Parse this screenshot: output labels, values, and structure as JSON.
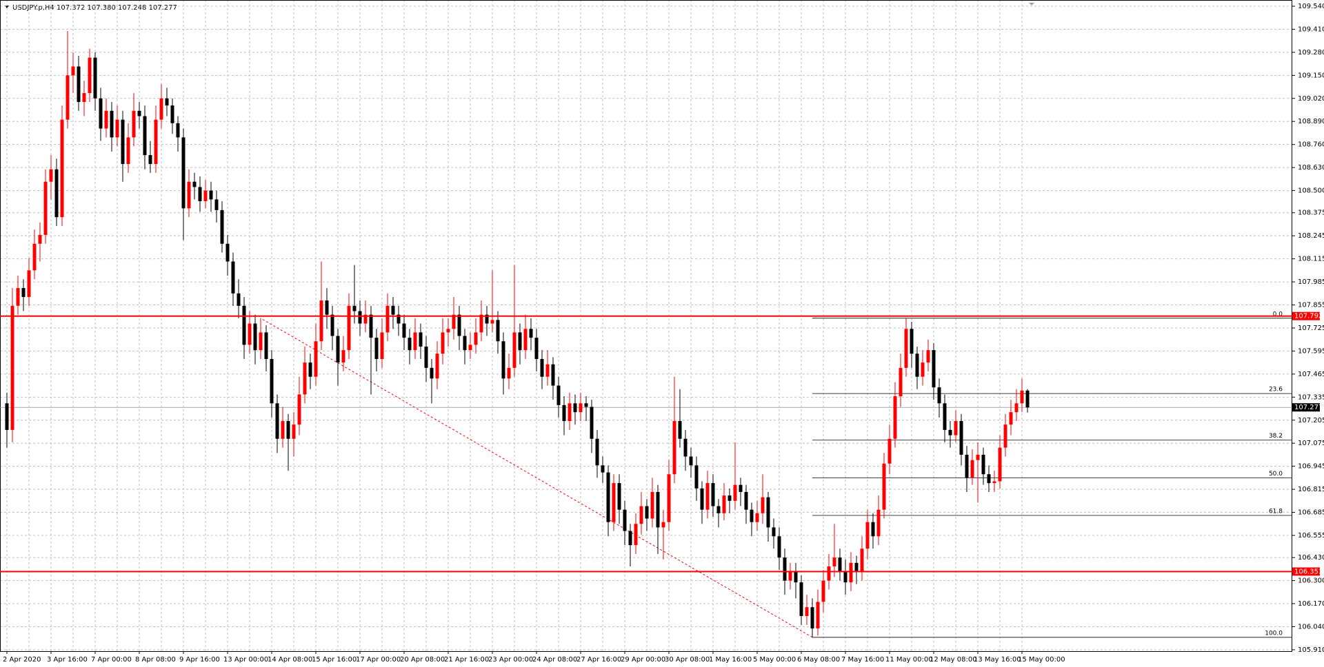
{
  "chart_data": {
    "type": "candlestick",
    "title": "USDJPY.p,H4  107.372 107.380 107.248 107.277",
    "up_color": "#ff0000",
    "down_color": "#000000",
    "grid": true,
    "ylim": [
      105.902,
      109.575
    ],
    "yticks": [
      {
        "value": 109.54,
        "label": "109.540"
      },
      {
        "value": 109.41,
        "label": "109.410"
      },
      {
        "value": 109.28,
        "label": "109.280"
      },
      {
        "value": 109.15,
        "label": "109.150"
      },
      {
        "value": 109.02,
        "label": "109.020"
      },
      {
        "value": 108.89,
        "label": "108.890"
      },
      {
        "value": 108.76,
        "label": "108.760"
      },
      {
        "value": 108.63,
        "label": "108.630"
      },
      {
        "value": 108.5,
        "label": "108.500"
      },
      108.375,
      108.245,
      108.115,
      107.985,
      107.855,
      107.725,
      107.595,
      107.465,
      107.335,
      107.205,
      107.075,
      106.945,
      106.815,
      106.685,
      106.555,
      {
        "value": 106.43,
        "label": "106.430"
      },
      {
        "value": 106.3,
        "label": "106.300"
      },
      {
        "value": 106.17,
        "label": "106.170"
      },
      {
        "value": 106.04,
        "label": "106.040"
      },
      {
        "value": 105.91,
        "label": "105.910"
      }
    ],
    "categories": [
      "2 Apr 2020",
      null,
      null,
      null,
      null,
      null,
      null,
      null,
      "3 Apr 16:00",
      null,
      null,
      null,
      null,
      null,
      null,
      null,
      "7 Apr 00:00",
      null,
      null,
      null,
      null,
      null,
      null,
      null,
      "8 Apr 08:00",
      null,
      null,
      null,
      null,
      null,
      null,
      null,
      "9 Apr 16:00",
      null,
      null,
      null,
      null,
      null,
      null,
      null,
      "13 Apr 00:00",
      null,
      null,
      null,
      null,
      null,
      null,
      null,
      "14 Apr 08:00",
      null,
      null,
      null,
      null,
      null,
      null,
      null,
      "15 Apr 16:00",
      null,
      null,
      null,
      null,
      null,
      null,
      null,
      "17 Apr 00:00",
      null,
      null,
      null,
      null,
      null,
      null,
      null,
      "20 Apr 08:00",
      null,
      null,
      null,
      null,
      null,
      null,
      null,
      "21 Apr 16:00",
      null,
      null,
      null,
      null,
      null,
      null,
      null,
      "23 Apr 00:00",
      null,
      null,
      null,
      null,
      null,
      null,
      null,
      "24 Apr 08:00",
      null,
      null,
      null,
      null,
      null,
      null,
      null,
      "27 Apr 16:00",
      null,
      null,
      null,
      null,
      null,
      null,
      null,
      "29 Apr 00:00",
      null,
      null,
      null,
      null,
      null,
      null,
      null,
      "30 Apr 08:00",
      null,
      null,
      null,
      null,
      null,
      null,
      null,
      "1 May 16:00",
      null,
      null,
      null,
      null,
      null,
      null,
      null,
      "5 May 00:00",
      null,
      null,
      null,
      null,
      null,
      null,
      null,
      "6 May 08:00",
      null,
      null,
      null,
      null,
      null,
      null,
      null,
      "7 May 16:00",
      null,
      null,
      null,
      null,
      null,
      null,
      null,
      "11 May 00:00",
      null,
      null,
      null,
      null,
      null,
      null,
      null,
      "12 May 08:00",
      null,
      null,
      null,
      null,
      null,
      null,
      null,
      "13 May 16:00",
      null,
      null,
      null,
      null,
      null,
      null,
      null,
      "15 May 00:00",
      null
    ],
    "ohlc": [
      [
        107.3,
        107.36,
        107.05,
        107.15
      ],
      [
        107.15,
        107.95,
        107.08,
        107.85
      ],
      [
        107.85,
        108.02,
        107.8,
        107.95
      ],
      [
        107.95,
        108.0,
        107.82,
        107.9
      ],
      [
        107.9,
        108.12,
        107.85,
        108.05
      ],
      [
        108.05,
        108.28,
        108.0,
        108.2
      ],
      [
        108.2,
        108.32,
        108.1,
        108.25
      ],
      [
        108.25,
        108.62,
        108.2,
        108.55
      ],
      [
        108.55,
        108.7,
        108.45,
        108.62
      ],
      [
        108.62,
        108.68,
        108.3,
        108.35
      ],
      [
        108.35,
        108.98,
        108.3,
        108.9
      ],
      [
        108.9,
        109.4,
        108.85,
        109.15
      ],
      [
        109.15,
        109.28,
        109.05,
        109.2
      ],
      [
        109.2,
        109.26,
        108.95,
        109.0
      ],
      [
        109.0,
        109.12,
        108.92,
        109.05
      ],
      [
        109.05,
        109.3,
        109.0,
        109.25
      ],
      [
        109.25,
        109.28,
        108.95,
        109.02
      ],
      [
        109.02,
        109.08,
        108.78,
        108.85
      ],
      [
        108.85,
        109.02,
        108.8,
        108.95
      ],
      [
        108.95,
        109.0,
        108.72,
        108.8
      ],
      [
        108.8,
        108.98,
        108.75,
        108.9
      ],
      [
        108.9,
        108.95,
        108.55,
        108.65
      ],
      [
        108.65,
        108.88,
        108.6,
        108.8
      ],
      [
        108.8,
        109.05,
        108.75,
        108.95
      ],
      [
        108.95,
        109.0,
        108.85,
        108.92
      ],
      [
        108.92,
        108.98,
        108.62,
        108.7
      ],
      [
        108.7,
        108.78,
        108.6,
        108.65
      ],
      [
        108.65,
        108.98,
        108.6,
        108.9
      ],
      [
        108.9,
        109.1,
        108.85,
        109.02
      ],
      [
        109.02,
        109.08,
        108.92,
        108.98
      ],
      [
        108.98,
        109.02,
        108.82,
        108.88
      ],
      [
        108.88,
        108.92,
        108.72,
        108.8
      ],
      [
        108.8,
        108.85,
        108.22,
        108.4
      ],
      [
        108.4,
        108.62,
        108.35,
        108.55
      ],
      [
        108.55,
        108.6,
        108.45,
        108.52
      ],
      [
        108.52,
        108.58,
        108.38,
        108.44
      ],
      [
        108.44,
        108.56,
        108.4,
        108.5
      ],
      [
        108.5,
        108.55,
        108.38,
        108.45
      ],
      [
        108.45,
        108.5,
        108.32,
        108.39
      ],
      [
        108.39,
        108.44,
        108.15,
        108.2
      ],
      [
        108.2,
        108.25,
        108.02,
        108.1
      ],
      [
        108.1,
        108.15,
        107.85,
        107.92
      ],
      [
        107.92,
        108.0,
        107.78,
        107.85
      ],
      [
        107.85,
        107.9,
        107.55,
        107.63
      ],
      [
        107.63,
        107.82,
        107.58,
        107.75
      ],
      [
        107.75,
        107.8,
        107.52,
        107.6
      ],
      [
        107.6,
        107.78,
        107.55,
        107.7
      ],
      [
        107.7,
        107.74,
        107.48,
        107.55
      ],
      [
        107.55,
        107.6,
        107.22,
        107.3
      ],
      [
        107.3,
        107.35,
        107.02,
        107.1
      ],
      [
        107.1,
        107.28,
        107.05,
        107.2
      ],
      [
        107.2,
        107.24,
        106.92,
        107.1
      ],
      [
        107.1,
        107.25,
        107.0,
        107.18
      ],
      [
        107.18,
        107.45,
        107.12,
        107.35
      ],
      [
        107.35,
        107.62,
        107.3,
        107.53
      ],
      [
        107.53,
        107.58,
        107.38,
        107.45
      ],
      [
        107.45,
        107.75,
        107.4,
        107.65
      ],
      [
        107.65,
        108.1,
        107.6,
        107.88
      ],
      [
        107.88,
        107.95,
        107.72,
        107.8
      ],
      [
        107.8,
        107.85,
        107.6,
        107.68
      ],
      [
        107.68,
        107.72,
        107.4,
        107.53
      ],
      [
        107.53,
        107.68,
        107.48,
        107.6
      ],
      [
        107.6,
        107.92,
        107.55,
        107.85
      ],
      [
        107.85,
        108.08,
        107.75,
        107.82
      ],
      [
        107.82,
        107.88,
        107.68,
        107.75
      ],
      [
        107.75,
        107.88,
        107.7,
        107.8
      ],
      [
        107.8,
        107.85,
        107.35,
        107.67
      ],
      [
        107.67,
        107.72,
        107.48,
        107.55
      ],
      [
        107.55,
        107.78,
        107.5,
        107.7
      ],
      [
        107.7,
        107.92,
        107.65,
        107.85
      ],
      [
        107.85,
        107.9,
        107.72,
        107.8
      ],
      [
        107.8,
        107.85,
        107.68,
        107.75
      ],
      [
        107.75,
        107.8,
        107.6,
        107.67
      ],
      [
        107.67,
        107.72,
        107.52,
        107.6
      ],
      [
        107.6,
        107.78,
        107.55,
        107.7
      ],
      [
        107.7,
        107.75,
        107.55,
        107.62
      ],
      [
        107.62,
        107.68,
        107.42,
        107.5
      ],
      [
        107.5,
        107.55,
        107.3,
        107.44
      ],
      [
        107.44,
        107.65,
        107.38,
        107.58
      ],
      [
        107.58,
        107.78,
        107.52,
        107.7
      ],
      [
        107.7,
        107.78,
        107.62,
        107.72
      ],
      [
        107.72,
        107.9,
        107.66,
        107.8
      ],
      [
        107.8,
        107.85,
        107.6,
        107.68
      ],
      [
        107.68,
        107.72,
        107.52,
        107.6
      ],
      [
        107.6,
        107.7,
        107.55,
        107.63
      ],
      [
        107.63,
        107.78,
        107.58,
        107.7
      ],
      [
        107.7,
        107.88,
        107.65,
        107.8
      ],
      [
        107.8,
        107.85,
        107.68,
        107.75
      ],
      [
        107.75,
        108.05,
        107.7,
        107.77
      ],
      [
        107.77,
        107.82,
        107.58,
        107.65
      ],
      [
        107.65,
        107.7,
        107.35,
        107.44
      ],
      [
        107.44,
        107.58,
        107.38,
        107.5
      ],
      [
        107.5,
        108.08,
        107.45,
        107.7
      ],
      [
        107.7,
        107.75,
        107.52,
        107.6
      ],
      [
        107.6,
        107.8,
        107.55,
        107.72
      ],
      [
        107.72,
        107.78,
        107.6,
        107.67
      ],
      [
        107.67,
        107.72,
        107.48,
        107.55
      ],
      [
        107.55,
        107.6,
        107.38,
        107.45
      ],
      [
        107.45,
        107.6,
        107.4,
        107.52
      ],
      [
        107.52,
        107.56,
        107.32,
        107.4
      ],
      [
        107.4,
        107.45,
        107.22,
        107.29
      ],
      [
        107.29,
        107.34,
        107.12,
        107.2
      ],
      [
        107.2,
        107.36,
        107.15,
        107.3
      ],
      [
        107.3,
        107.35,
        107.18,
        107.25
      ],
      [
        107.25,
        107.36,
        107.2,
        107.3
      ],
      [
        107.3,
        107.34,
        107.2,
        107.28
      ],
      [
        107.28,
        107.32,
        107.02,
        107.1
      ],
      [
        107.1,
        107.15,
        106.88,
        106.95
      ],
      [
        106.95,
        107.0,
        106.85,
        106.91
      ],
      [
        106.91,
        106.95,
        106.55,
        106.63
      ],
      [
        106.63,
        106.9,
        106.58,
        106.85
      ],
      [
        106.85,
        106.9,
        106.62,
        106.7
      ],
      [
        106.7,
        106.75,
        106.5,
        106.58
      ],
      [
        106.58,
        106.62,
        106.38,
        106.5
      ],
      [
        106.5,
        106.68,
        106.45,
        106.62
      ],
      [
        106.62,
        106.8,
        106.56,
        106.72
      ],
      [
        106.72,
        106.76,
        106.58,
        106.65
      ],
      [
        106.65,
        106.88,
        106.6,
        106.8
      ],
      [
        106.8,
        106.84,
        106.45,
        106.6
      ],
      [
        106.6,
        106.7,
        106.42,
        106.63
      ],
      [
        106.63,
        106.98,
        106.58,
        106.9
      ],
      [
        106.9,
        107.45,
        106.85,
        107.2
      ],
      [
        107.2,
        107.38,
        107.05,
        107.1
      ],
      [
        107.1,
        107.15,
        106.92,
        107.0
      ],
      [
        107.0,
        107.05,
        106.88,
        106.95
      ],
      [
        106.95,
        107.0,
        106.75,
        106.82
      ],
      [
        106.82,
        106.86,
        106.62,
        106.7
      ],
      [
        106.7,
        106.92,
        106.65,
        106.85
      ],
      [
        106.85,
        106.9,
        106.66,
        106.72
      ],
      [
        106.72,
        106.76,
        106.6,
        106.68
      ],
      [
        106.68,
        106.85,
        106.64,
        106.78
      ],
      [
        106.78,
        106.82,
        106.68,
        106.75
      ],
      [
        106.75,
        107.08,
        106.7,
        106.84
      ],
      [
        106.84,
        106.88,
        106.72,
        106.8
      ],
      [
        106.8,
        106.84,
        106.62,
        106.7
      ],
      [
        106.7,
        106.74,
        106.55,
        106.63
      ],
      [
        106.63,
        106.75,
        106.58,
        106.68
      ],
      [
        106.68,
        106.9,
        106.62,
        106.77
      ],
      [
        106.77,
        106.8,
        106.52,
        106.6
      ],
      [
        106.6,
        106.65,
        106.48,
        106.55
      ],
      [
        106.55,
        106.6,
        106.36,
        106.43
      ],
      [
        106.43,
        106.48,
        106.22,
        106.3
      ],
      [
        106.3,
        106.4,
        106.25,
        106.35
      ],
      [
        106.35,
        106.4,
        106.2,
        106.29
      ],
      [
        106.29,
        106.33,
        106.05,
        106.1
      ],
      [
        106.1,
        106.22,
        106.05,
        106.15
      ],
      [
        106.15,
        106.2,
        105.98,
        106.03
      ],
      [
        106.03,
        106.25,
        105.99,
        106.18
      ],
      [
        106.18,
        106.36,
        106.12,
        106.3
      ],
      [
        106.3,
        106.45,
        106.25,
        106.38
      ],
      [
        106.38,
        106.62,
        106.32,
        106.43
      ],
      [
        106.43,
        106.48,
        106.3,
        106.35
      ],
      [
        106.35,
        106.42,
        106.22,
        106.29
      ],
      [
        106.29,
        106.46,
        106.24,
        106.4
      ],
      [
        106.4,
        106.44,
        106.28,
        106.35
      ],
      [
        106.35,
        106.55,
        106.3,
        106.48
      ],
      [
        106.48,
        106.7,
        106.42,
        106.63
      ],
      [
        106.63,
        106.68,
        106.48,
        106.55
      ],
      [
        106.55,
        106.78,
        106.5,
        106.7
      ],
      [
        106.7,
        107.02,
        106.65,
        106.96
      ],
      [
        106.96,
        107.18,
        106.9,
        107.1
      ],
      [
        107.1,
        107.42,
        107.05,
        107.34
      ],
      [
        107.34,
        107.58,
        107.28,
        107.5
      ],
      [
        107.5,
        107.78,
        107.45,
        107.72
      ],
      [
        107.72,
        107.76,
        107.5,
        107.58
      ],
      [
        107.58,
        107.62,
        107.38,
        107.45
      ],
      [
        107.45,
        107.6,
        107.4,
        107.53
      ],
      [
        107.53,
        107.66,
        107.48,
        107.6
      ],
      [
        107.6,
        107.64,
        107.32,
        107.39
      ],
      [
        107.39,
        107.44,
        107.22,
        107.3
      ],
      [
        107.3,
        107.35,
        107.08,
        107.15
      ],
      [
        107.15,
        107.2,
        107.05,
        107.12
      ],
      [
        107.12,
        107.26,
        107.08,
        107.2
      ],
      [
        107.2,
        107.24,
        106.95,
        107.01
      ],
      [
        107.01,
        107.06,
        106.8,
        106.88
      ],
      [
        106.88,
        107.04,
        106.84,
        106.98
      ],
      [
        106.98,
        107.08,
        106.74,
        107.01
      ],
      [
        107.01,
        107.05,
        106.84,
        106.9
      ],
      [
        106.9,
        106.95,
        106.8,
        106.85
      ],
      [
        106.85,
        106.92,
        106.8,
        106.86
      ],
      [
        106.86,
        107.12,
        106.82,
        107.05
      ],
      [
        107.05,
        107.24,
        107.0,
        107.18
      ],
      [
        107.18,
        107.32,
        107.12,
        107.25
      ],
      [
        107.25,
        107.38,
        107.2,
        107.3
      ],
      [
        107.3,
        107.44,
        107.25,
        107.372
      ],
      [
        107.372,
        107.38,
        107.248,
        107.277
      ]
    ],
    "hlines": [
      {
        "value": 107.792,
        "color": "#ff0000"
      },
      {
        "value": 106.351,
        "color": "#ff0000"
      }
    ],
    "last_price_color": "#7f93a8",
    "fibonacci": {
      "high": 107.78,
      "low": 105.98,
      "color": "#ff0000",
      "levels": [
        {
          "value": 0,
          "label": "0.0"
        },
        23.6,
        38.2,
        {
          "value": 50,
          "label": "50.0"
        },
        61.8,
        {
          "value": 100,
          "label": "100.0"
        }
      ]
    }
  }
}
